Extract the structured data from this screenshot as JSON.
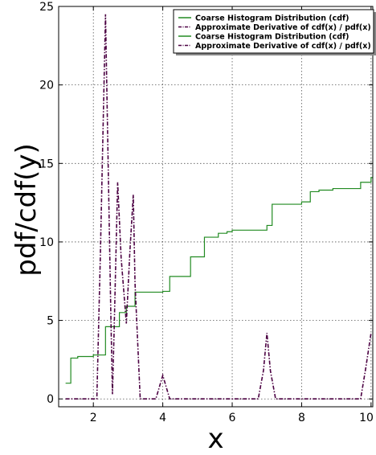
{
  "chart_data": {
    "type": "line",
    "title": "",
    "xlabel": "x",
    "ylabel": "pdf/cdf(y)",
    "xlim": [
      1.0,
      10.05
    ],
    "ylim": [
      -0.5,
      25
    ],
    "grid": true,
    "legend_position": "top-right",
    "x_ticks": [
      2,
      4,
      6,
      8,
      10
    ],
    "x_tick_labels": [
      "2",
      "4",
      "6",
      "8",
      "10"
    ],
    "y_ticks": [
      0,
      5,
      10,
      15,
      20,
      25
    ],
    "y_tick_labels": [
      "0",
      "5",
      "10",
      "15",
      "20",
      "25"
    ],
    "legend": [
      {
        "label": "Coarse Histogram Distribution (cdf)",
        "color": "#228b22",
        "style": "solid"
      },
      {
        "label": "Approximate Derivative of cdf(x) / pdf(x)",
        "color": "#4b0042",
        "style": "dashdot"
      },
      {
        "label": "Coarse Histogram Distribution (cdf)",
        "color": "#228b22",
        "style": "solid"
      },
      {
        "label": "Approximate Derivative of cdf(x) / pdf(x)",
        "color": "#4b0042",
        "style": "dashdot"
      }
    ],
    "series": [
      {
        "color": "#228b22",
        "style": "step",
        "x": [
          1.2,
          1.35,
          1.55,
          2.0,
          2.35,
          2.75,
          2.95,
          3.2,
          4.0,
          4.2,
          4.8,
          5.2,
          5.6,
          5.85,
          6.0,
          7.0,
          7.15,
          8.0,
          8.25,
          8.5,
          8.9,
          9.7,
          10.0
        ],
        "values": [
          1.0,
          2.6,
          2.7,
          2.8,
          4.6,
          5.5,
          5.9,
          6.8,
          6.85,
          7.8,
          9.05,
          10.3,
          10.55,
          10.65,
          10.75,
          11.05,
          12.4,
          12.55,
          13.2,
          13.3,
          13.4,
          13.8,
          14.1
        ]
      },
      {
        "color": "#4b0042",
        "style": "dashdot",
        "x": [
          1.2,
          2.1,
          2.2,
          2.35,
          2.5,
          2.55,
          2.6,
          2.7,
          2.8,
          2.95,
          3.05,
          3.15,
          3.2,
          3.35,
          3.8,
          4.0,
          4.2,
          6.75,
          6.9,
          7.0,
          7.1,
          7.25,
          9.7,
          9.85,
          10.0
        ],
        "values": [
          0,
          0,
          9,
          24.5,
          5.8,
          0.3,
          4.5,
          13.8,
          9.0,
          4.8,
          9.3,
          13.0,
          7.4,
          0,
          0,
          1.5,
          0,
          0,
          1.8,
          4.2,
          1.8,
          0,
          0,
          2.0,
          4.2
        ]
      }
    ]
  }
}
